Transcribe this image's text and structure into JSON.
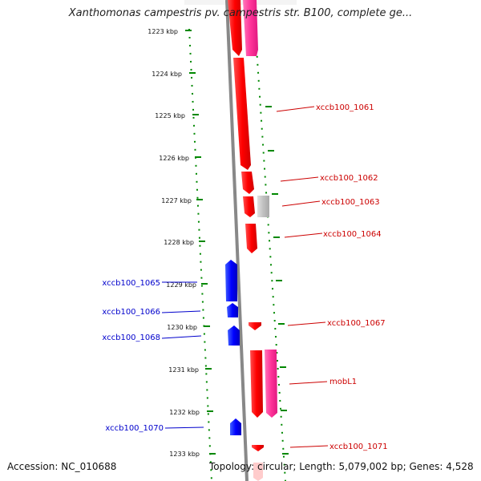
{
  "title": "Xanthomonas campestris pv. campestris str. B100, complete ge...",
  "ruler": {
    "ticks": [
      "1223 kbp",
      "1224 kbp",
      "1225 kbp",
      "1226 kbp",
      "1227 kbp",
      "1228 kbp",
      "1229 kbp",
      "1230 kbp",
      "1231 kbp",
      "1232 kbp",
      "1233 kbp"
    ]
  },
  "genes": {
    "forward": [
      "xccb100_1061",
      "xccb100_1062",
      "xccb100_1063",
      "xccb100_1064",
      "xccb100_1067",
      "mobL1",
      "xccb100_1071"
    ],
    "reverse": [
      "xccb100_1065",
      "xccb100_1066",
      "xccb100_1068",
      "xccb100_1070"
    ]
  },
  "colors": {
    "forward_cds": "#ff0000",
    "forward_gene": "#ff3399",
    "pseudo": "#c0c0c0",
    "reverse_cds": "#0000ff",
    "backbone": "#888888",
    "ruler": "#008800",
    "forward_label": "#cc0000",
    "reverse_label": "#0000cc"
  },
  "footer": {
    "accession": "Accession: NC_010688",
    "summary": "Topology: circular; Length: 5,079,002 bp; Genes: 4,528"
  }
}
